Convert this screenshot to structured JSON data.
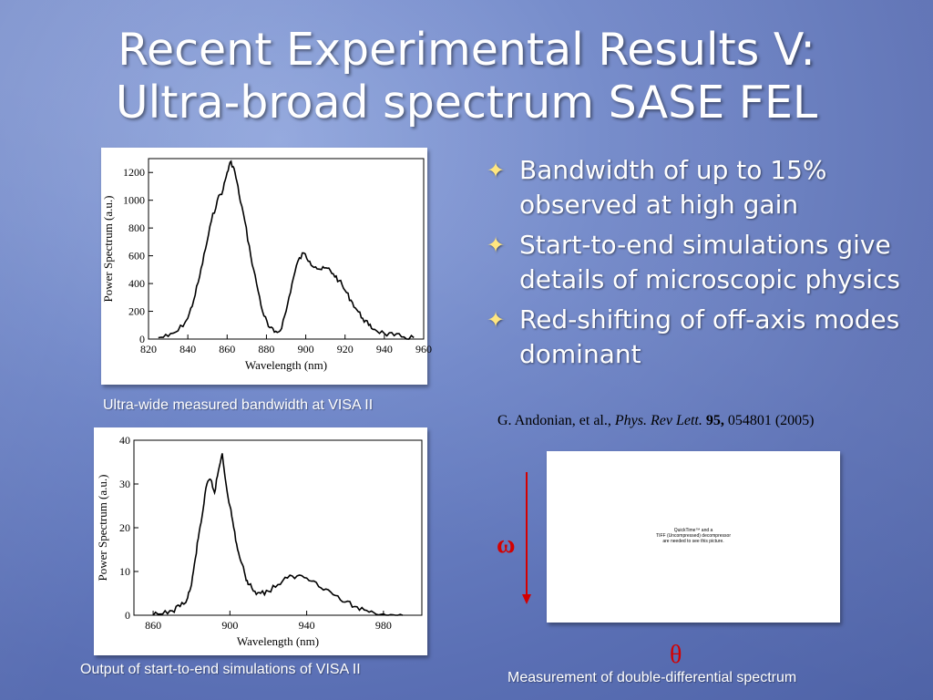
{
  "slide": {
    "title_line1": "Recent Experimental Results V:",
    "title_line2": "Ultra-broad spectrum SASE FEL",
    "bullets": [
      "Bandwidth of up to 15% observed at high gain",
      "Start-to-end simulations give details of microscopic physics",
      "Red-shifting of off-axis modes dominant"
    ],
    "citation": {
      "authors": "G. Andonian, et al.,",
      "journal": "Phys. Rev Lett.",
      "volume": "95,",
      "rest": "054801 (2005)"
    },
    "caption_top": "Ultra-wide measured bandwidth at VISA II",
    "caption_bottom": "Output of start-to-end simulations of VISA  II",
    "caption_right": "Measurement of double-differential spectrum",
    "placeholder_text": "QuickTime™ and a\nTIFF (Uncompressed) decompressor\nare needed to see this picture.",
    "omega_label": "ω",
    "theta_label": "θ",
    "bullet_icon": "four-point-star-icon",
    "colors": {
      "title": "#ffffff",
      "accent_star": "#ffe680",
      "greek": "#d40000"
    }
  },
  "chart_data": [
    {
      "type": "line",
      "xlabel": "Wavelength (nm)",
      "ylabel": "Power Spectrum (a.u.)",
      "xlim": [
        820,
        960
      ],
      "ylim": [
        0,
        1300
      ],
      "xticks": [
        820,
        840,
        860,
        880,
        900,
        920,
        940,
        960
      ],
      "yticks": [
        0,
        200,
        400,
        600,
        800,
        1000,
        1200
      ],
      "x": [
        825,
        830,
        835,
        840,
        843,
        846,
        849,
        852,
        855,
        858,
        860,
        862,
        864,
        866,
        869,
        872,
        875,
        878,
        881,
        884,
        887,
        890,
        893,
        896,
        899,
        902,
        905,
        908,
        911,
        914,
        917,
        920,
        923,
        926,
        929,
        932,
        935,
        940,
        945,
        950,
        955
      ],
      "y": [
        10,
        20,
        60,
        150,
        280,
        450,
        650,
        850,
        1000,
        1080,
        1200,
        1280,
        1200,
        1050,
        850,
        600,
        400,
        200,
        90,
        50,
        60,
        200,
        400,
        560,
        620,
        560,
        520,
        500,
        510,
        470,
        420,
        350,
        280,
        210,
        150,
        100,
        70,
        40,
        25,
        15,
        10
      ]
    },
    {
      "type": "line",
      "xlabel": "Wavelength (nm)",
      "ylabel": "Power Spectrum (a.u.)",
      "xlim": [
        850,
        1000
      ],
      "ylim": [
        0,
        40
      ],
      "xticks": [
        860,
        900,
        940,
        980
      ],
      "yticks": [
        0,
        10,
        20,
        30,
        40
      ],
      "x": [
        860,
        865,
        870,
        874,
        878,
        880,
        882,
        884,
        886,
        888,
        890,
        892,
        894,
        896,
        898,
        900,
        902,
        904,
        906,
        908,
        910,
        913,
        916,
        920,
        925,
        930,
        935,
        940,
        945,
        950,
        955,
        960,
        965,
        970,
        975,
        980,
        985,
        990
      ],
      "y": [
        0,
        0.3,
        1,
        2,
        4,
        7,
        13,
        19,
        24,
        30,
        31,
        28,
        33,
        37,
        30,
        25,
        20,
        15,
        12,
        9,
        7,
        5.5,
        5,
        5.5,
        7,
        8.5,
        9,
        8.5,
        7.5,
        6,
        4.5,
        3,
        2,
        1.2,
        0.6,
        0.3,
        0.1,
        0
      ]
    }
  ]
}
